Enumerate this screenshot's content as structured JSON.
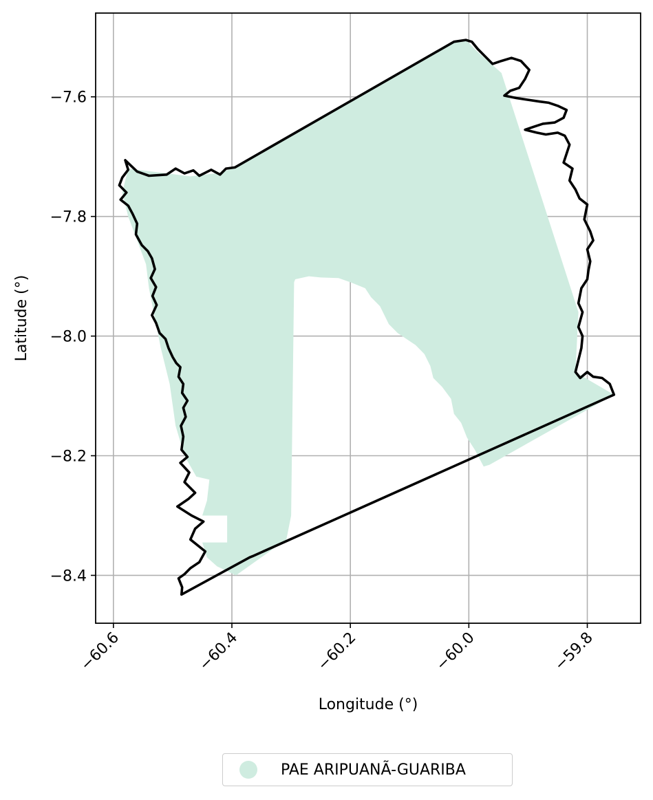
{
  "chart_data": {
    "type": "map",
    "xlabel": "Longitude (°)",
    "ylabel": "Latitude (°)",
    "xlim": [
      -60.63,
      -59.71
    ],
    "ylim": [
      -8.48,
      -7.46
    ],
    "grid": true,
    "legend_placement": "bottom-center",
    "x_ticks": [
      -60.6,
      -60.4,
      -60.2,
      -60.0,
      -59.8
    ],
    "x_tick_labels": [
      "−60.6",
      "−60.4",
      "−60.2",
      "−60.0",
      "−59.8"
    ],
    "y_ticks": [
      -7.6,
      -7.8,
      -8.0,
      -8.2,
      -8.4
    ],
    "y_tick_labels": [
      "−7.6",
      "−7.8",
      "−8.0",
      "−8.2",
      "−8.4"
    ],
    "layers": [
      {
        "name": "PAE ARIPUANÃ-GUARIBA",
        "color": "#cfece0",
        "polygon": [
          [
            -60.575,
            -7.72
          ],
          [
            -60.47,
            -7.733
          ],
          [
            -60.42,
            -7.727
          ],
          [
            -60.395,
            -7.718
          ],
          [
            -60.025,
            -7.508
          ],
          [
            -60.005,
            -7.505
          ],
          [
            -59.985,
            -7.525
          ],
          [
            -59.945,
            -7.56
          ],
          [
            -59.815,
            -7.96
          ],
          [
            -59.82,
            -8.06
          ],
          [
            -59.795,
            -8.075
          ],
          [
            -59.755,
            -8.098
          ],
          [
            -59.965,
            -8.215
          ],
          [
            -59.975,
            -8.218
          ],
          [
            -59.99,
            -8.19
          ],
          [
            -60.003,
            -8.17
          ],
          [
            -60.013,
            -8.145
          ],
          [
            -60.025,
            -8.13
          ],
          [
            -60.03,
            -8.105
          ],
          [
            -60.045,
            -8.085
          ],
          [
            -60.06,
            -8.07
          ],
          [
            -60.065,
            -8.05
          ],
          [
            -60.075,
            -8.03
          ],
          [
            -60.09,
            -8.015
          ],
          [
            -60.12,
            -7.995
          ],
          [
            -60.135,
            -7.98
          ],
          [
            -60.15,
            -7.95
          ],
          [
            -60.165,
            -7.935
          ],
          [
            -60.175,
            -7.92
          ],
          [
            -60.2,
            -7.91
          ],
          [
            -60.22,
            -7.903
          ],
          [
            -60.25,
            -7.902
          ],
          [
            -60.27,
            -7.9
          ],
          [
            -60.293,
            -7.905
          ],
          [
            -60.295,
            -7.91
          ],
          [
            -60.3,
            -8.3
          ],
          [
            -60.308,
            -8.34
          ],
          [
            -60.393,
            -8.4
          ],
          [
            -60.425,
            -8.385
          ],
          [
            -60.442,
            -8.37
          ],
          [
            -60.45,
            -8.345
          ],
          [
            -60.408,
            -8.345
          ],
          [
            -60.408,
            -8.3
          ],
          [
            -60.45,
            -8.3
          ],
          [
            -60.442,
            -8.275
          ],
          [
            -60.438,
            -8.24
          ],
          [
            -60.46,
            -8.235
          ],
          [
            -60.48,
            -8.2
          ],
          [
            -60.495,
            -8.15
          ],
          [
            -60.505,
            -8.08
          ],
          [
            -60.52,
            -8.02
          ],
          [
            -60.53,
            -7.97
          ],
          [
            -60.54,
            -7.92
          ],
          [
            -60.545,
            -7.88
          ],
          [
            -60.56,
            -7.84
          ],
          [
            -60.575,
            -7.8
          ],
          [
            -60.585,
            -7.76
          ]
        ]
      },
      {
        "name": "boundary",
        "color": "#000000",
        "polygon": [
          [
            -60.58,
            -7.706
          ],
          [
            -60.575,
            -7.722
          ],
          [
            -60.585,
            -7.735
          ],
          [
            -60.59,
            -7.748
          ],
          [
            -60.578,
            -7.76
          ],
          [
            -60.588,
            -7.772
          ],
          [
            -60.575,
            -7.782
          ],
          [
            -60.568,
            -7.795
          ],
          [
            -60.56,
            -7.812
          ],
          [
            -60.562,
            -7.83
          ],
          [
            -60.552,
            -7.848
          ],
          [
            -60.542,
            -7.858
          ],
          [
            -60.535,
            -7.87
          ],
          [
            -60.53,
            -7.888
          ],
          [
            -60.537,
            -7.903
          ],
          [
            -60.528,
            -7.918
          ],
          [
            -60.534,
            -7.933
          ],
          [
            -60.527,
            -7.948
          ],
          [
            -60.535,
            -7.965
          ],
          [
            -60.528,
            -7.978
          ],
          [
            -60.522,
            -7.995
          ],
          [
            -60.512,
            -8.005
          ],
          [
            -60.507,
            -8.02
          ],
          [
            -60.5,
            -8.035
          ],
          [
            -60.494,
            -8.045
          ],
          [
            -60.487,
            -8.052
          ],
          [
            -60.49,
            -8.068
          ],
          [
            -60.482,
            -8.08
          ],
          [
            -60.484,
            -8.095
          ],
          [
            -60.475,
            -8.108
          ],
          [
            -60.482,
            -8.12
          ],
          [
            -60.478,
            -8.135
          ],
          [
            -60.486,
            -8.15
          ],
          [
            -60.482,
            -8.168
          ],
          [
            -60.485,
            -8.19
          ],
          [
            -60.475,
            -8.202
          ],
          [
            -60.487,
            -8.212
          ],
          [
            -60.472,
            -8.228
          ],
          [
            -60.48,
            -8.244
          ],
          [
            -60.462,
            -8.262
          ],
          [
            -60.473,
            -8.272
          ],
          [
            -60.492,
            -8.285
          ],
          [
            -60.468,
            -8.3
          ],
          [
            -60.448,
            -8.31
          ],
          [
            -60.462,
            -8.322
          ],
          [
            -60.47,
            -8.34
          ],
          [
            -60.445,
            -8.36
          ],
          [
            -60.455,
            -8.378
          ],
          [
            -60.47,
            -8.388
          ],
          [
            -60.48,
            -8.398
          ],
          [
            -60.49,
            -8.405
          ],
          [
            -60.484,
            -8.42
          ],
          [
            -60.485,
            -8.432
          ],
          [
            -60.37,
            -8.37
          ],
          [
            -60.365,
            -8.368
          ],
          [
            -59.755,
            -8.098
          ],
          [
            -59.762,
            -8.08
          ],
          [
            -59.775,
            -8.07
          ],
          [
            -59.79,
            -8.068
          ],
          [
            -59.8,
            -8.06
          ],
          [
            -59.812,
            -8.07
          ],
          [
            -59.82,
            -8.06
          ],
          [
            -59.815,
            -8.04
          ],
          [
            -59.81,
            -8.02
          ],
          [
            -59.808,
            -8.0
          ],
          [
            -59.815,
            -7.985
          ],
          [
            -59.808,
            -7.96
          ],
          [
            -59.815,
            -7.945
          ],
          [
            -59.81,
            -7.92
          ],
          [
            -59.8,
            -7.905
          ],
          [
            -59.798,
            -7.89
          ],
          [
            -59.795,
            -7.875
          ],
          [
            -59.8,
            -7.855
          ],
          [
            -59.79,
            -7.84
          ],
          [
            -59.795,
            -7.825
          ],
          [
            -59.805,
            -7.805
          ],
          [
            -59.8,
            -7.78
          ],
          [
            -59.813,
            -7.77
          ],
          [
            -59.82,
            -7.755
          ],
          [
            -59.83,
            -7.74
          ],
          [
            -59.825,
            -7.72
          ],
          [
            -59.84,
            -7.71
          ],
          [
            -59.835,
            -7.695
          ],
          [
            -59.83,
            -7.68
          ],
          [
            -59.838,
            -7.665
          ],
          [
            -59.85,
            -7.66
          ],
          [
            -59.87,
            -7.663
          ],
          [
            -59.885,
            -7.66
          ],
          [
            -59.905,
            -7.655
          ],
          [
            -59.89,
            -7.65
          ],
          [
            -59.875,
            -7.645
          ],
          [
            -59.855,
            -7.643
          ],
          [
            -59.84,
            -7.635
          ],
          [
            -59.835,
            -7.622
          ],
          [
            -59.85,
            -7.615
          ],
          [
            -59.865,
            -7.61
          ],
          [
            -59.88,
            -7.608
          ],
          [
            -59.9,
            -7.605
          ],
          [
            -59.92,
            -7.602
          ],
          [
            -59.94,
            -7.598
          ],
          [
            -59.93,
            -7.59
          ],
          [
            -59.915,
            -7.585
          ],
          [
            -59.905,
            -7.57
          ],
          [
            -59.898,
            -7.555
          ],
          [
            -59.912,
            -7.54
          ],
          [
            -59.928,
            -7.535
          ],
          [
            -59.945,
            -7.54
          ],
          [
            -59.96,
            -7.545
          ],
          [
            -59.975,
            -7.53
          ],
          [
            -59.985,
            -7.52
          ],
          [
            -59.995,
            -7.508
          ],
          [
            -60.005,
            -7.505
          ],
          [
            -60.025,
            -7.508
          ],
          [
            -60.395,
            -7.718
          ],
          [
            -60.41,
            -7.72
          ],
          [
            -60.42,
            -7.73
          ],
          [
            -60.435,
            -7.722
          ],
          [
            -60.455,
            -7.732
          ],
          [
            -60.465,
            -7.723
          ],
          [
            -60.48,
            -7.728
          ],
          [
            -60.495,
            -7.72
          ],
          [
            -60.51,
            -7.73
          ],
          [
            -60.54,
            -7.732
          ],
          [
            -60.56,
            -7.725
          ]
        ]
      }
    ],
    "legend": [
      {
        "label": "PAE ARIPUANÃ-GUARIBA",
        "color": "#cfece0",
        "marker": "circle"
      }
    ]
  }
}
